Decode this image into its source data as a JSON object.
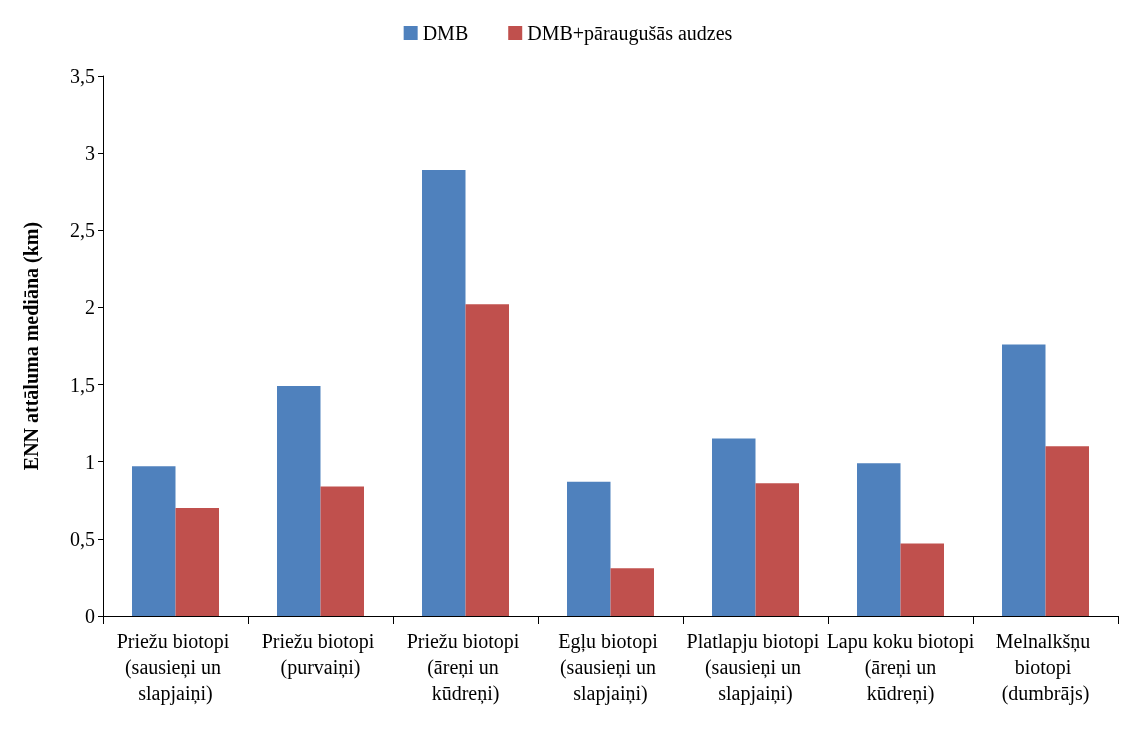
{
  "chart_data": {
    "type": "bar",
    "ylabel": "ENN attāluma mediāna (km)",
    "categories": [
      "Priežu biotopi (sausieņi un slapjaiņi)",
      "Priežu biotopi (purvaiņi)",
      "Priežu biotopi (āreņi un kūdreņi)",
      "Egļu biotopi (sausieņi un slapjaiņi)",
      "Platlapju biotopi (sausieņi un slapjaiņi)",
      "Lapu koku biotopi (āreņi un kūdreņi)",
      "Melnalkšņu biotopi (dumbrājs)"
    ],
    "series": [
      {
        "name": "DMB",
        "color": "#4f81bd",
        "values": [
          0.97,
          1.49,
          2.89,
          0.87,
          1.15,
          0.99,
          1.76
        ]
      },
      {
        "name": "DMB+pāraugušās audzes",
        "color": "#c0504d",
        "values": [
          0.7,
          0.84,
          2.02,
          0.31,
          0.86,
          0.47,
          1.1
        ]
      }
    ],
    "ylim": [
      0,
      3.5
    ],
    "yticks": [
      0,
      {
        "value": 0.5,
        "label": "0,5"
      },
      1,
      {
        "value": 1.5,
        "label": "1,5"
      },
      2,
      {
        "value": 2.5,
        "label": "2,5"
      },
      3,
      {
        "value": 3.5,
        "label": "3,5"
      }
    ],
    "grid": false,
    "legend": "top"
  }
}
